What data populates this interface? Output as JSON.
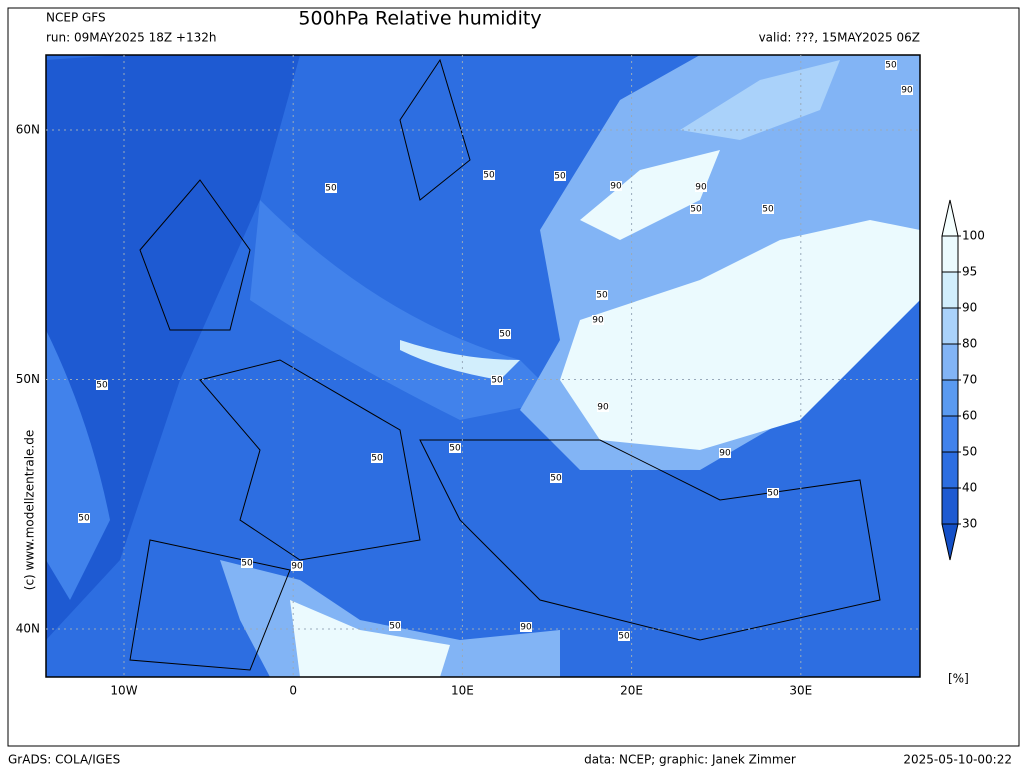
{
  "header": {
    "model": "NCEP GFS",
    "title": "500hPa Relative humidity",
    "run": "run: 09MAY2025 18Z +132h",
    "valid": "valid: ???, 15MAY2025 06Z"
  },
  "map": {
    "lat_labels": [
      "60N",
      "50N",
      "40N"
    ],
    "lon_labels": [
      "10W",
      "0",
      "10E",
      "20E",
      "30E"
    ],
    "contour_labels": [
      50,
      50,
      50,
      90,
      90,
      50,
      50,
      50,
      90,
      50,
      90,
      50,
      50,
      50,
      90,
      50,
      50,
      90,
      50,
      50,
      50,
      50,
      90,
      50,
      90,
      50
    ]
  },
  "colorbar": {
    "levels": [
      30,
      40,
      50,
      60,
      70,
      80,
      90,
      95,
      100
    ],
    "colors": [
      "#1450c8",
      "#1e5ad2",
      "#2d6ee1",
      "#4182eb",
      "#5a9af0",
      "#82b4f5",
      "#aad2fa",
      "#d2eefc",
      "#ebfafe",
      "#f5ffff"
    ],
    "unit": "[%]"
  },
  "credit": "(c) www.modellzentrale.de",
  "footer": {
    "left": "GrADS: COLA/IGES",
    "center": "data: NCEP; graphic: Janek Zimmer",
    "right": "2025-05-10-00:22"
  }
}
